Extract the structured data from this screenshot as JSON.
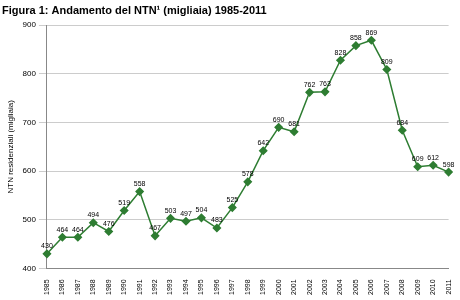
{
  "chart_data": {
    "type": "line",
    "title": "Figura 1: Andamento del NTN¹ (migliaia) 1985-2011",
    "y_label": "NTN residenziali (migliaia)",
    "categories": [
      "1985",
      "1986",
      "1987",
      "1988",
      "1989",
      "1990",
      "1991",
      "1992",
      "1993",
      "1994",
      "1995",
      "1996",
      "1997",
      "1998",
      "1999",
      "2000",
      "2001",
      "2002",
      "2003",
      "2004",
      "2005",
      "2006",
      "2007",
      "2008",
      "2009",
      "2010",
      "2011"
    ],
    "values": [
      430,
      464,
      464,
      494,
      476,
      519,
      558,
      467,
      503,
      497,
      504,
      483,
      525,
      578,
      642,
      690,
      681,
      762,
      763,
      828,
      858,
      869,
      809,
      684,
      609,
      612,
      598
    ],
    "color": "#2e7d32",
    "marker": "diamond",
    "ylim": [
      400,
      900
    ],
    "yticks": [
      400,
      500,
      600,
      700,
      800,
      900
    ],
    "grid": true,
    "data_labels": true
  }
}
